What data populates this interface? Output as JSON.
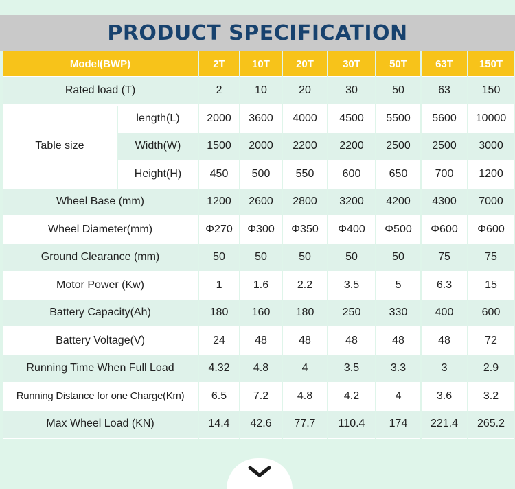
{
  "title": "PRODUCT SPECIFICATION",
  "header": {
    "model_label": "Model(BWP)",
    "models": [
      "2T",
      "10T",
      "20T",
      "30T",
      "50T",
      "63T",
      "150T"
    ]
  },
  "rows": {
    "rated_load": {
      "label": "Rated load (T)",
      "values": [
        "2",
        "10",
        "20",
        "30",
        "50",
        "63",
        "150"
      ]
    },
    "table_size": {
      "label": "Table size",
      "length": {
        "label": "length(L)",
        "values": [
          "2000",
          "3600",
          "4000",
          "4500",
          "5500",
          "5600",
          "10000"
        ]
      },
      "width": {
        "label": "Width(W)",
        "values": [
          "1500",
          "2000",
          "2200",
          "2200",
          "2500",
          "2500",
          "3000"
        ]
      },
      "height": {
        "label": "Height(H)",
        "values": [
          "450",
          "500",
          "550",
          "600",
          "650",
          "700",
          "1200"
        ]
      }
    },
    "wheel_base": {
      "label": "Wheel Base (mm)",
      "values": [
        "1200",
        "2600",
        "2800",
        "3200",
        "4200",
        "4300",
        "7000"
      ]
    },
    "wheel_diameter": {
      "label": "Wheel Diameter(mm)",
      "values": [
        "Φ270",
        "Φ300",
        "Φ350",
        "Φ400",
        "Φ500",
        "Φ600",
        "Φ600"
      ]
    },
    "ground_clearance": {
      "label": "Ground Clearance (mm)",
      "values": [
        "50",
        "50",
        "50",
        "50",
        "50",
        "75",
        "75"
      ]
    },
    "motor_power": {
      "label": "Motor Power (Kw)",
      "values": [
        "1",
        "1.6",
        "2.2",
        "3.5",
        "5",
        "6.3",
        "15"
      ]
    },
    "battery_capacity": {
      "label": "Battery Capacity(Ah)",
      "values": [
        "180",
        "160",
        "180",
        "250",
        "330",
        "400",
        "600"
      ]
    },
    "battery_voltage": {
      "label": "Battery Voltage(V)",
      "values": [
        "24",
        "48",
        "48",
        "48",
        "48",
        "48",
        "72"
      ]
    },
    "running_time": {
      "label": "Running Time When Full Load",
      "values": [
        "4.32",
        "4.8",
        "4",
        "3.5",
        "3.3",
        "3",
        "2.9"
      ]
    },
    "running_distance": {
      "label": "Running Distance for one Charge(Km)",
      "values": [
        "6.5",
        "7.2",
        "4.8",
        "4.2",
        "4",
        "3.6",
        "3.2"
      ]
    },
    "max_wheel_load": {
      "label": "Max Wheel Load (KN)",
      "values": [
        "14.4",
        "42.6",
        "77.7",
        "110.4",
        "174",
        "221.4",
        "265.2"
      ]
    }
  },
  "colors": {
    "header_bg": "#f7c31a",
    "title_color": "#17426e",
    "banner_bg": "#c9c9c9",
    "row_green": "#dff2ea",
    "row_white": "#ffffff"
  },
  "icons": {
    "scroll_down": "chevron-down-icon"
  }
}
